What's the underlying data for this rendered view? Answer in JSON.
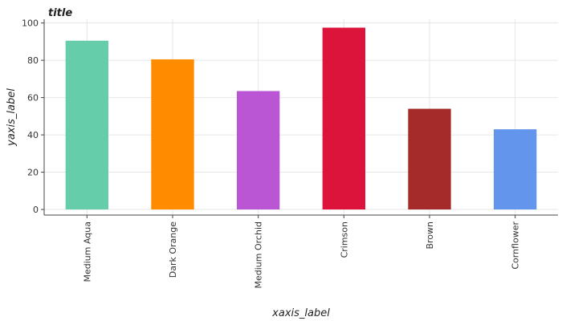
{
  "chart_data": {
    "type": "bar",
    "title": "title",
    "xlabel": "xaxis_label",
    "ylabel": "yaxis_label",
    "categories": [
      "Medium Aqua",
      "Dark Orange",
      "Medium Orchid",
      "Crimson",
      "Brown",
      "Cornflower"
    ],
    "values": [
      90.5,
      80.5,
      63.5,
      97.5,
      54,
      43
    ],
    "colors": [
      "#66cdaa",
      "#ff8c00",
      "#ba55d3",
      "#dc143c",
      "#a52a2a",
      "#6495ed"
    ],
    "ylim": [
      -3,
      102
    ],
    "yticks": [
      0,
      20,
      40,
      60,
      80,
      100
    ],
    "grid": true,
    "legend": "none"
  }
}
